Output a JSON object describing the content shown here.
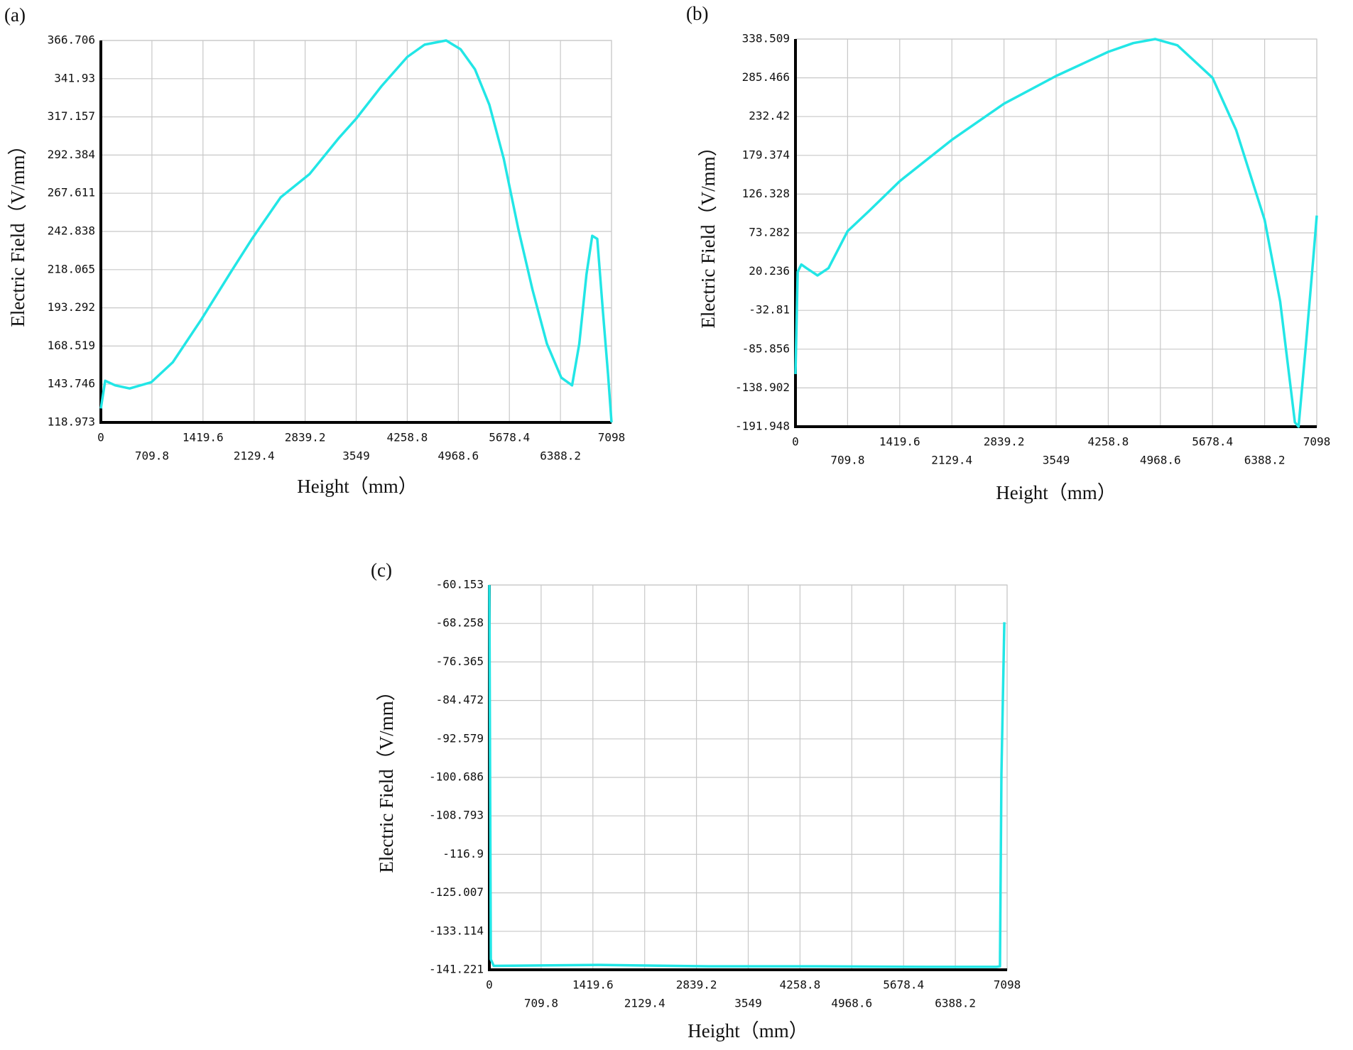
{
  "chart_data": [
    {
      "type": "line",
      "panel_label": "(a)",
      "xlabel": "Height（mm）",
      "ylabel": "Electric Field（V/mm）",
      "x": [
        0,
        60,
        200,
        400,
        700,
        1000,
        1400,
        1800,
        2100,
        2500,
        2900,
        3300,
        3549,
        3900,
        4258.8,
        4500,
        4800,
        5000,
        5200,
        5400,
        5600,
        5800,
        6000,
        6200,
        6400,
        6550,
        6650,
        6750,
        6830,
        6900,
        6980,
        7050,
        7098
      ],
      "series": [
        {
          "color": "#22e6e6",
          "values": [
            128,
            146,
            143,
            141,
            145,
            158,
            186,
            216,
            238,
            265,
            280,
            303,
            316,
            337,
            356,
            364,
            366.7,
            361,
            348,
            325,
            290,
            245,
            205,
            170,
            148,
            143,
            170,
            215,
            240,
            238,
            190,
            150,
            119
          ]
        }
      ],
      "xlim": [
        0,
        7098
      ],
      "ylim": [
        118.973,
        366.706
      ],
      "xticks": [
        0,
        709.8,
        1419.6,
        2129.4,
        2839.2,
        3549,
        4258.8,
        4968.6,
        5678.4,
        6388.2,
        7098
      ],
      "yticks": [
        118.973,
        143.746,
        168.519,
        193.292,
        218.065,
        242.838,
        267.611,
        292.384,
        317.157,
        341.93,
        366.706
      ],
      "grid": true
    },
    {
      "type": "line",
      "panel_label": "(b)",
      "xlabel": "Height（mm）",
      "ylabel": "Electric Field（V/mm）",
      "x": [
        0,
        30,
        80,
        150,
        300,
        450,
        709.8,
        1000,
        1419.6,
        2129.4,
        2839.2,
        3549,
        4258.8,
        4600,
        4900,
        5200,
        5678.4,
        6000,
        6388.2,
        6600,
        6800,
        6850,
        6950,
        7050,
        7098
      ],
      "series": [
        {
          "color": "#22e6e6",
          "values": [
            -120,
            20,
            30,
            25,
            15,
            25,
            75.6,
            103,
            144,
            200.6,
            250,
            288,
            321,
            333,
            338.5,
            330,
            285.5,
            214,
            91,
            -21,
            -186,
            -191.9,
            -80,
            38,
            97
          ]
        }
      ],
      "xlim": [
        0,
        7098
      ],
      "ylim": [
        -191.948,
        338.509
      ],
      "xticks": [
        0,
        709.8,
        1419.6,
        2129.4,
        2839.2,
        3549,
        4258.8,
        4968.6,
        5678.4,
        6388.2,
        7098
      ],
      "yticks": [
        -191.948,
        -138.902,
        -85.856,
        -32.81,
        20.236,
        73.282,
        126.328,
        179.374,
        232.42,
        285.466,
        338.509
      ],
      "grid": true
    },
    {
      "type": "line",
      "panel_label": "(c)",
      "xlabel": "Height（mm）",
      "ylabel": "Electric Field（V/mm）",
      "x": [
        0,
        20,
        60,
        1500,
        3000,
        4500,
        6000,
        6950,
        7000,
        7020,
        7060
      ],
      "series": [
        {
          "color": "#22e6e6",
          "values": [
            -60.153,
            -139,
            -140.4,
            -140.2,
            -140.5,
            -140.5,
            -140.6,
            -140.6,
            -140.5,
            -100,
            -68
          ]
        }
      ],
      "xlim": [
        0,
        7098
      ],
      "ylim": [
        -141.221,
        -60.153
      ],
      "xticks": [
        0,
        709.8,
        1419.6,
        2129.4,
        2839.2,
        3549,
        4258.8,
        4968.6,
        5678.4,
        6388.2,
        7098
      ],
      "yticks": [
        -141.221,
        -133.114,
        -125.007,
        -116.9,
        -108.793,
        -100.686,
        -92.579,
        -84.472,
        -76.365,
        -68.258,
        -60.153
      ],
      "grid": true
    }
  ]
}
